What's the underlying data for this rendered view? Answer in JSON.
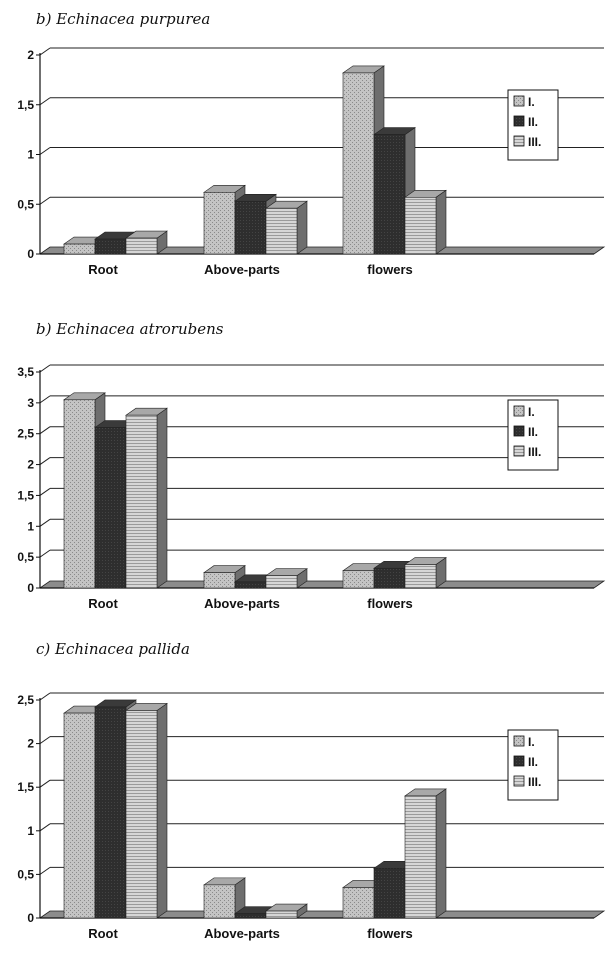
{
  "chart_data": [
    {
      "type": "bar",
      "title": "b) Echinacea purpurea",
      "categories": [
        "Root",
        "Above-parts",
        "flowers"
      ],
      "series": [
        {
          "name": "I.",
          "values": [
            0.1,
            0.62,
            1.82
          ]
        },
        {
          "name": "II.",
          "values": [
            0.15,
            0.53,
            1.2
          ]
        },
        {
          "name": "III.",
          "values": [
            0.16,
            0.46,
            0.57
          ]
        }
      ],
      "ylim": [
        0,
        2
      ],
      "yticks": [
        "0",
        "0,5",
        "1",
        "1,5",
        "2"
      ],
      "xlabel": "",
      "ylabel": "",
      "grid": true,
      "legend": "right"
    },
    {
      "type": "bar",
      "title": "b) Echinacea atrorubens",
      "categories": [
        "Root",
        "Above-parts",
        "flowers"
      ],
      "series": [
        {
          "name": "I.",
          "values": [
            3.05,
            0.25,
            0.28
          ]
        },
        {
          "name": "II.",
          "values": [
            2.6,
            0.1,
            0.32
          ]
        },
        {
          "name": "III.",
          "values": [
            2.8,
            0.2,
            0.38
          ]
        }
      ],
      "ylim": [
        0,
        3.5
      ],
      "yticks": [
        "0",
        "0,5",
        "1",
        "1,5",
        "2",
        "2,5",
        "3",
        "3,5"
      ],
      "xlabel": "",
      "ylabel": "",
      "grid": true,
      "legend": "right"
    },
    {
      "type": "bar",
      "title": "c) Echinacea pallida",
      "categories": [
        "Root",
        "Above-parts",
        "flowers"
      ],
      "series": [
        {
          "name": "I.",
          "values": [
            2.35,
            0.38,
            0.35
          ]
        },
        {
          "name": "II.",
          "values": [
            2.42,
            0.05,
            0.57
          ]
        },
        {
          "name": "III.",
          "values": [
            2.38,
            0.08,
            1.4
          ]
        }
      ],
      "ylim": [
        0,
        2.5
      ],
      "yticks": [
        "0",
        "0,5",
        "1",
        "1,5",
        "2",
        "2,5"
      ],
      "xlabel": "",
      "ylabel": "",
      "grid": true,
      "legend": "right"
    }
  ],
  "colors": {
    "I.": "#c4c4c4",
    "II.": "#2e2e2e",
    "III.": "#d6d6d6",
    "side": "#6e6e6e",
    "floor": "#8c8c8c",
    "grid": "#222222"
  }
}
